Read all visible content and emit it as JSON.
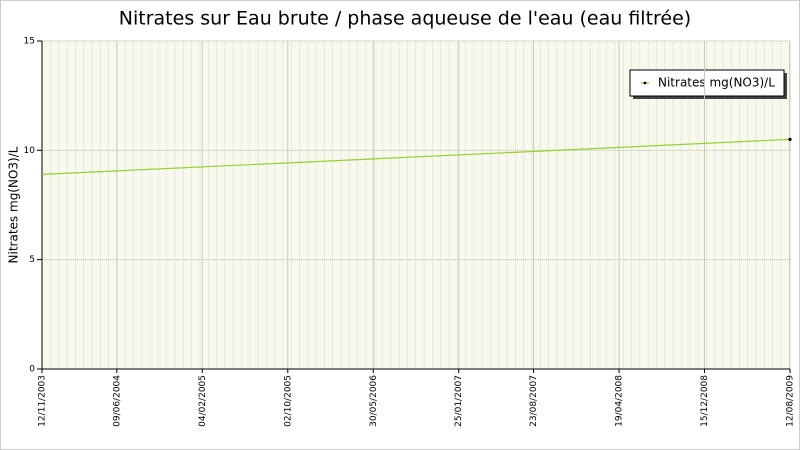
{
  "chart_data": {
    "type": "line",
    "title": "Nitrates sur Eau brute / phase aqueuse de l'eau (eau filtrée)",
    "y_label": "Nitrates mg(NO3)/L",
    "x": [
      "12/11/2003",
      "12/08/2009"
    ],
    "series": [
      {
        "name": "Nitrates mg(NO3)/L",
        "color": "#9acd32",
        "values": [
          8.9,
          10.5
        ]
      }
    ],
    "xlim": [
      "12/11/2003",
      "12/08/2009"
    ],
    "xticks": [
      "12/11/2003",
      "09/06/2004",
      "04/02/2005",
      "02/10/2005",
      "30/05/2006",
      "25/01/2007",
      "23/08/2007",
      "19/04/2008",
      "15/12/2008",
      "12/08/2009"
    ],
    "ylim": [
      0,
      15
    ],
    "yticks": [
      0,
      5,
      10,
      15
    ],
    "grid": true,
    "legend": "top-right"
  }
}
